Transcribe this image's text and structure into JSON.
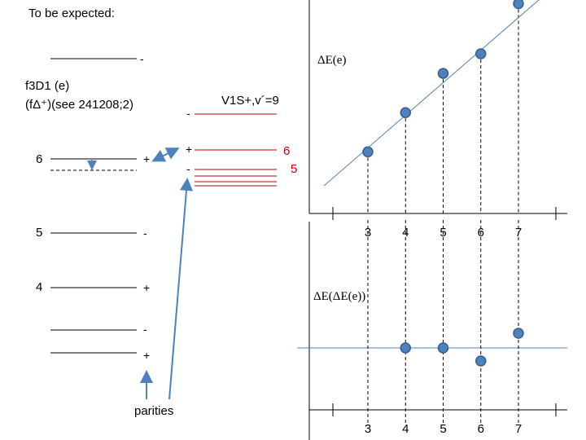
{
  "title": "To be expected:",
  "state_label_line1": "f3D1 (e)",
  "state_label_line2": "(fΔ⁺)(see 241208;2)",
  "right_state_label": "V1S+,v´=9",
  "parities_label": "parities",
  "left_levels": [
    {
      "label": "",
      "parity": "-"
    },
    {
      "label": "6",
      "parity": "+"
    },
    {
      "label": "5",
      "parity": "-"
    },
    {
      "label": "4",
      "parity": "+"
    },
    {
      "label": "",
      "parity": "-"
    },
    {
      "label": "",
      "parity": "+"
    }
  ],
  "right_levels": [
    {
      "label": "",
      "parity": "-"
    },
    {
      "label": "6",
      "parity": "+"
    },
    {
      "label": "5",
      "parity": "-"
    }
  ],
  "colors": {
    "axis": "#000000",
    "marker_fill": "#4f81bd",
    "marker_edge": "#385d8a",
    "fit_line": "#4f81bd",
    "dashed_guides": "#000000",
    "vib_levels": "#c00000",
    "arrow": "#4f81bd"
  },
  "chart_data": [
    {
      "type": "scatter",
      "ylabel": "ΔE(e)",
      "categories": [
        "3",
        "4",
        "5",
        "6",
        "7"
      ],
      "x": [
        3,
        4,
        5,
        6,
        7
      ],
      "y": [
        1.6,
        2.5,
        3.4,
        3.85,
        5.0
      ],
      "fit_line": true
    },
    {
      "type": "scatter",
      "ylabel": "ΔE(ΔE(e))",
      "categories": [
        "3",
        "4",
        "5",
        "6",
        "7"
      ],
      "x": [
        4,
        5,
        6,
        7
      ],
      "y": [
        0,
        0,
        -0.4,
        0.45
      ],
      "zero_line": true
    }
  ]
}
